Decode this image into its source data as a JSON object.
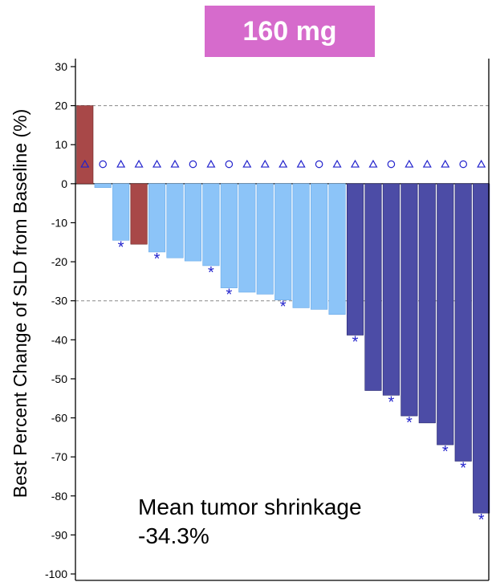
{
  "chart_data": {
    "type": "bar",
    "title": "160 mg",
    "ylabel": "Best Percent Change of SLD from Baseline (%)",
    "xlabel": "",
    "ylim": [
      -100,
      30
    ],
    "yticks": [
      30,
      20,
      10,
      0,
      -10,
      -20,
      -30,
      -40,
      -50,
      -60,
      -70,
      -80,
      -90,
      -100
    ],
    "reference_lines": [
      20,
      -30
    ],
    "annotation": [
      "Mean tumor shrinkage",
      "-34.3%"
    ],
    "colors": {
      "progressive": "#a84848",
      "stable": "#8cc4f8",
      "partial_response": "#4c4ca6",
      "marker": "#2222cc",
      "header": "#d66bcc"
    },
    "values": [
      20,
      -1,
      -14.5,
      -15.5,
      -17.5,
      -19,
      -19.8,
      -21,
      -26.7,
      -27.8,
      -28.3,
      -29.8,
      -31.8,
      -32.2,
      -33.5,
      -38.8,
      -53,
      -54.2,
      -59.5,
      -61.3,
      -66.9,
      -71.1,
      -84.4
    ],
    "categories": [
      "progressive",
      "stable",
      "stable",
      "progressive",
      "stable",
      "stable",
      "stable",
      "stable",
      "stable",
      "stable",
      "stable",
      "stable",
      "stable",
      "stable",
      "stable",
      "partial_response",
      "partial_response",
      "partial_response",
      "partial_response",
      "partial_response",
      "partial_response",
      "partial_response",
      "partial_response"
    ],
    "top_markers": [
      "triangle",
      "circle",
      "triangle",
      "triangle",
      "triangle",
      "triangle",
      "circle",
      "triangle",
      "circle",
      "triangle",
      "triangle",
      "triangle",
      "triangle",
      "circle",
      "triangle",
      "triangle",
      "triangle",
      "circle",
      "triangle",
      "triangle",
      "triangle",
      "circle",
      "triangle"
    ],
    "asterisk": [
      false,
      false,
      true,
      false,
      true,
      false,
      false,
      true,
      true,
      false,
      false,
      true,
      false,
      false,
      false,
      true,
      false,
      true,
      true,
      false,
      true,
      true,
      true
    ]
  }
}
